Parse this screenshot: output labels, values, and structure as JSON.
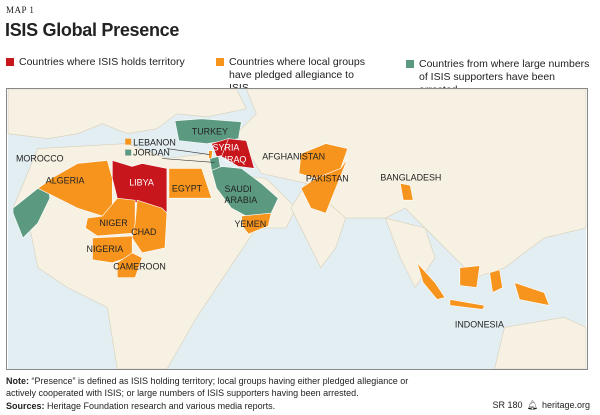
{
  "header": {
    "map_label": "MAP 1",
    "title": "ISIS Global Presence"
  },
  "legend": [
    {
      "label": "Countries where ISIS holds territory",
      "color": "#c8161d"
    },
    {
      "label": "Countries where local groups have pledged allegiance to ISIS",
      "color": "#f7941d"
    },
    {
      "label": "Countries from where large numbers of ISIS supporters have been arrested",
      "color": "#5b9a80"
    }
  ],
  "countries": {
    "morocco": "MOROCCO",
    "algeria": "ALGERIA",
    "libya": "LIBYA",
    "egypt": "EGYPT",
    "niger": "NIGER",
    "chad": "CHAD",
    "nigeria": "NIGERIA",
    "cameroon": "CAMEROON",
    "lebanon": "LEBANON",
    "jordan": "JORDAN",
    "turkey": "TURKEY",
    "syria": "SYRIA",
    "iraq": "IRAQ",
    "saudi1": "SAUDI",
    "saudi2": "ARABIA",
    "yemen": "YEMEN",
    "afghanistan": "AFGHANISTAN",
    "pakistan": "PAKISTAN",
    "bangladesh": "BANGLADESH",
    "indonesia": "INDONESIA"
  },
  "footer": {
    "note_label": "Note:",
    "note_text": " “Presence” is defined as ISIS holding territory; local groups having either pledged allegiance or actively cooperated with ISIS; or large numbers of ISIS supporters having been arrested.",
    "sources_label": "Sources:",
    "sources_text": " Heritage Foundation research and various media reports.",
    "report": "SR 180",
    "site": "heritage.org"
  }
}
